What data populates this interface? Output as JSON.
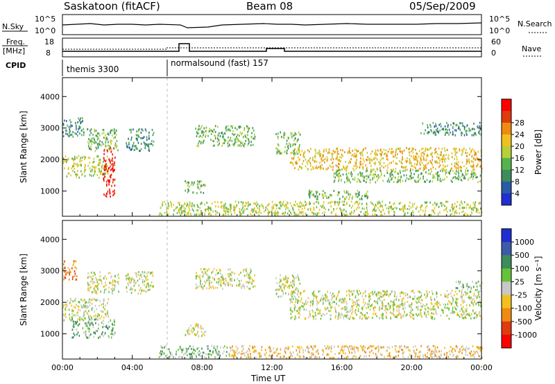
{
  "header": {
    "station": "Saskatoon (fitACF)",
    "beam": "Beam 08",
    "date": "05/Sep/2009"
  },
  "strip_panels": {
    "nsky_label": "N.Sky",
    "nsky_ticks": [
      "10^5",
      "10^0"
    ],
    "nsearch_label": "N.Search",
    "nsearch_ticks": [
      "10^5",
      "10^0"
    ],
    "freq_label": "Freq.",
    "freq_unit": "[MHz]",
    "freq_ticks": [
      "18",
      "8"
    ],
    "nave_label": "Nave",
    "nave_ticks": [
      "60",
      "0"
    ],
    "cpid_label": "CPID",
    "cpid_segments": [
      {
        "name": "themis 3300",
        "start_hour": 0
      },
      {
        "name": "normalsound (fast) 157",
        "start_hour": 6
      }
    ]
  },
  "chart_data": [
    {
      "type": "heatmap",
      "title": "Power",
      "xlabel": "",
      "ylabel": "Slant Range [km]",
      "x_ticks": [
        "00:00",
        "04:00",
        "08:00",
        "12:00",
        "16:00",
        "20:00",
        "00:00"
      ],
      "xlim_hours": [
        0,
        24
      ],
      "y_ticks": [
        1000,
        2000,
        3000,
        4000
      ],
      "ylim": [
        200,
        4600
      ],
      "colorbar_label": "Power [dB]",
      "colorbar_ticks": [
        4,
        8,
        12,
        16,
        20,
        24,
        28
      ],
      "colorbar_colors": [
        "#1f2fcf",
        "#2a5aa8",
        "#3d8c5a",
        "#56b24c",
        "#b6cf3a",
        "#f0c020",
        "#f08a10",
        "#e03a10",
        "#ff0000"
      ],
      "regions": [
        {
          "t": [
            0.0,
            2.6
          ],
          "r": [
            1450,
            2150
          ],
          "level": 4
        },
        {
          "t": [
            0.0,
            1.2
          ],
          "r": [
            2750,
            3350
          ],
          "level": 2
        },
        {
          "t": [
            1.4,
            3.2
          ],
          "r": [
            2300,
            3000
          ],
          "level": 3
        },
        {
          "t": [
            2.3,
            3.0
          ],
          "r": [
            800,
            2400
          ],
          "level": 8
        },
        {
          "t": [
            3.6,
            5.2
          ],
          "r": [
            2300,
            3000
          ],
          "level": 2
        },
        {
          "t": [
            7.0,
            8.2
          ],
          "r": [
            950,
            1350
          ],
          "level": 3
        },
        {
          "t": [
            7.6,
            11.0
          ],
          "r": [
            2450,
            3100
          ],
          "level": 3
        },
        {
          "t": [
            12.2,
            13.6
          ],
          "r": [
            2200,
            2900
          ],
          "level": 3
        },
        {
          "t": [
            13.0,
            24.0
          ],
          "r": [
            1700,
            2400
          ],
          "level": 5
        },
        {
          "t": [
            15.5,
            24.0
          ],
          "r": [
            1300,
            1700
          ],
          "level": 3
        },
        {
          "t": [
            14.0,
            17.5
          ],
          "r": [
            750,
            1050
          ],
          "level": 3
        },
        {
          "t": [
            5.5,
            24.0
          ],
          "r": [
            250,
            700
          ],
          "level": 4
        },
        {
          "t": [
            20.5,
            24.0
          ],
          "r": [
            2800,
            3200
          ],
          "level": 2
        }
      ]
    },
    {
      "type": "heatmap",
      "title": "Velocity",
      "xlabel": "Time UT",
      "ylabel": "Slant Range [km]",
      "x_ticks": [
        "00:00",
        "04:00",
        "08:00",
        "12:00",
        "16:00",
        "20:00",
        "00:00"
      ],
      "xlim_hours": [
        0,
        24
      ],
      "y_ticks": [
        1000,
        2000,
        3000,
        4000
      ],
      "ylim": [
        200,
        4600
      ],
      "colorbar_label": "Velocity [m s⁻¹]",
      "colorbar_ticks": [
        1000,
        500,
        100,
        25,
        -25,
        -100,
        -500,
        -1000
      ],
      "colorbar_colors": [
        "#1f2fcf",
        "#3d5aa8",
        "#3d8c5a",
        "#66c23a",
        "#c8c8c8",
        "#f0c020",
        "#f08a10",
        "#e03a10",
        "#ff0000"
      ],
      "regions": [
        {
          "t": [
            0.0,
            2.6
          ],
          "r": [
            1450,
            2150
          ],
          "level": 4
        },
        {
          "t": [
            0.0,
            0.8
          ],
          "r": [
            2750,
            3350
          ],
          "level": 6
        },
        {
          "t": [
            0.5,
            3.0
          ],
          "r": [
            900,
            1500
          ],
          "level": 3
        },
        {
          "t": [
            1.4,
            3.2
          ],
          "r": [
            2300,
            3000
          ],
          "level": 4
        },
        {
          "t": [
            3.6,
            5.2
          ],
          "r": [
            2300,
            3000
          ],
          "level": 4
        },
        {
          "t": [
            7.0,
            8.2
          ],
          "r": [
            950,
            1350
          ],
          "level": 4
        },
        {
          "t": [
            7.6,
            11.0
          ],
          "r": [
            2450,
            3100
          ],
          "level": 4
        },
        {
          "t": [
            12.2,
            13.6
          ],
          "r": [
            2200,
            2900
          ],
          "level": 4
        },
        {
          "t": [
            13.0,
            24.0
          ],
          "r": [
            1500,
            2400
          ],
          "level": 4
        },
        {
          "t": [
            5.5,
            9.5
          ],
          "r": [
            250,
            650
          ],
          "level": 3
        },
        {
          "t": [
            9.5,
            24.0
          ],
          "r": [
            250,
            650
          ],
          "level": 5
        },
        {
          "t": [
            22.5,
            24.0
          ],
          "r": [
            2400,
            2700
          ],
          "level": 3
        }
      ]
    }
  ]
}
